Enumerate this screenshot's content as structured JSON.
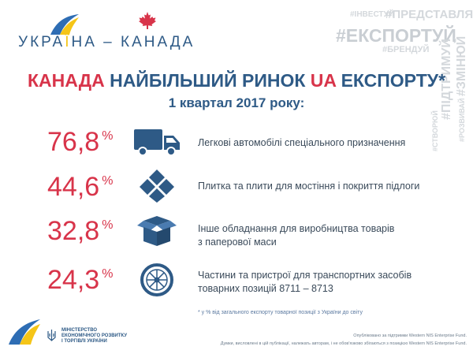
{
  "logo": {
    "part1": "УКРА",
    "highlight": "Ї",
    "part2": "НА – КАНАДА"
  },
  "hashtags": [
    "#ІНВЕСТУЙ",
    "#ПРЕДСТАВЛЯЙ",
    "#ЕКСПОРТУЙ",
    "#БРЕНДУЙ",
    "#ПІДТРИМУЙ",
    "#ЗМІНЮЙ",
    "#СТВОРЮЙ",
    "#РОЗВИВАЙ"
  ],
  "title": {
    "red1": "КАНАДА",
    "blue1": "НАЙБІЛЬШИЙ РИНОК",
    "red2": "UA",
    "blue2": "ЕКСПОРТУ*"
  },
  "subtitle": "1 квартал 2017 року:",
  "rows": [
    {
      "value": "76,8",
      "unit": "%",
      "icon": "truck-icon",
      "text": "Легкові автомобілі спеціального призначення"
    },
    {
      "value": "44,6",
      "unit": "%",
      "icon": "tiles-icon",
      "text": "Плитка та плити для мостіння і покриття підлоги"
    },
    {
      "value": "32,8",
      "unit": "%",
      "icon": "box-icon",
      "text_lines": [
        "Інше обладнання для виробництва товарів",
        "з паперової маси"
      ]
    },
    {
      "value": "24,3",
      "unit": "%",
      "icon": "wheel-icon",
      "text_lines": [
        "Частини та пристрої для транспортних засобів",
        "товарних позицій 8711 – 8713"
      ]
    }
  ],
  "footnote": "* у % від загального експорту товарної позиції з України до світу",
  "ministry": [
    "МІНІСТЕРСТВО",
    "ЕКОНОМІЧНОГО РОЗВИТКУ",
    "І ТОРГІВЛІ УКРАЇНИ"
  ],
  "credit1": "Опубліковано за підтримки Western NIS Enterprise Fund.",
  "credit2": "Думки, висловлені в цій публікації, належать авторам, і не обов'язково збігаються з позицією Western NIS Enterprise Fund.",
  "colors": {
    "red": "#d8344a",
    "blue": "#2e5a86",
    "yellow": "#f5c518",
    "hashtag_gray": "#d4d8dc"
  }
}
